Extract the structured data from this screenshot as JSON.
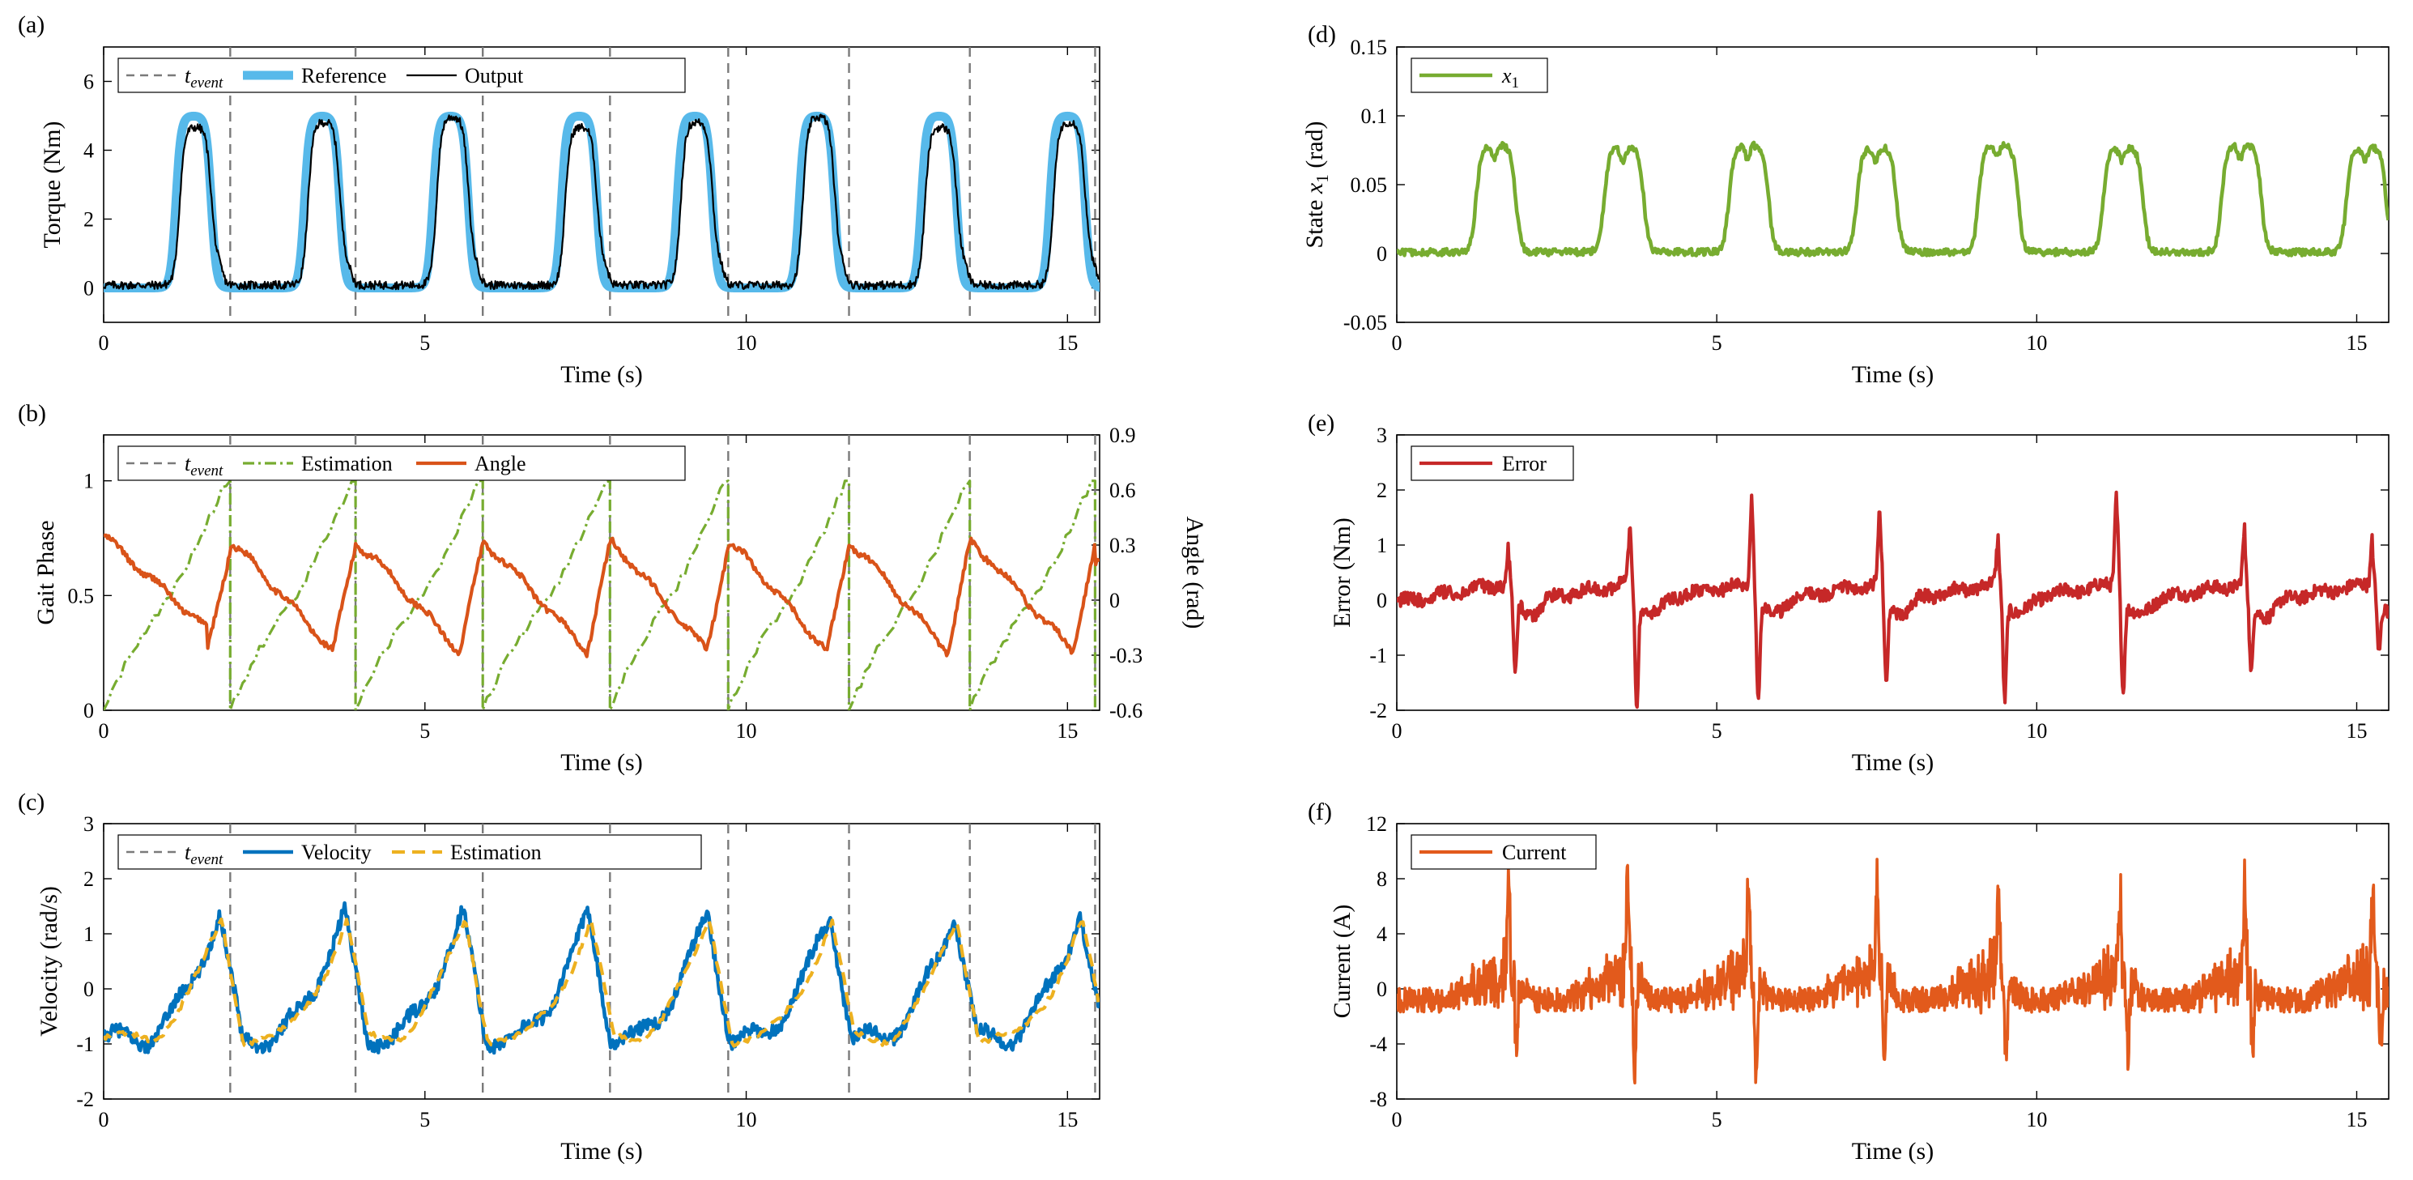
{
  "colors": {
    "event": "#7a7a7a",
    "reference": "#57b9ea",
    "output": "#000000",
    "phase": "#77ac30",
    "angle": "#d95319",
    "velocity": "#0072bd",
    "vel_estimation": "#edb120",
    "x1": "#77ac30",
    "error": "#c62828",
    "current": "#e25a1c"
  },
  "chart_data": [
    {
      "panel": "(a)",
      "type": "line",
      "xlabel": "Time (s)",
      "ylabel": "Torque (Nm)",
      "xlim": [
        0,
        15.5
      ],
      "ylim": [
        -1,
        7
      ],
      "xticks": [
        "0",
        "5",
        "10",
        "15"
      ],
      "yticks": [
        "0",
        "2",
        "4",
        "6"
      ],
      "grid": false,
      "legend": {
        "placement": "top-left",
        "entries": [
          "t_event",
          "Reference",
          "Output"
        ]
      },
      "event_times": [
        1.97,
        3.92,
        5.9,
        7.88,
        9.72,
        11.6,
        13.48,
        15.43
      ],
      "peak_times": [
        1.4,
        3.4,
        5.4,
        7.4,
        9.2,
        11.1,
        13.0,
        15.0
      ],
      "series": [
        {
          "name": "Reference",
          "style": "thick",
          "description_values": {
            "baseline": 0,
            "peak": 5.0,
            "plateau_width_s": 0.45
          }
        },
        {
          "name": "Output",
          "style": "thin",
          "description_values": {
            "baseline": 0.1,
            "peak": 4.8
          }
        }
      ]
    },
    {
      "panel": "(b)",
      "type": "line",
      "xlabel": "Time (s)",
      "ylabel": "Gait Phase",
      "ylabel_right": "Angle (rad)",
      "xlim": [
        0,
        15.5
      ],
      "ylim": [
        0,
        1.2
      ],
      "ylim_right": [
        -0.6,
        0.9
      ],
      "xticks": [
        "0",
        "5",
        "10",
        "15"
      ],
      "yticks": [
        "0",
        "0.5",
        "1"
      ],
      "yticks_right": [
        "-0.6",
        "-0.3",
        "0",
        "0.3",
        "0.6",
        "0.9"
      ],
      "legend": {
        "placement": "top-left",
        "entries": [
          "t_event",
          "Estimation",
          "Angle"
        ]
      },
      "series": [
        {
          "name": "Estimation",
          "style": "dash-dot",
          "description_values": {
            "ramp_from": 0,
            "ramp_to": 1.0
          }
        },
        {
          "name": "Angle",
          "style": "solid",
          "axis": "right",
          "description_values": {
            "max": 0.3,
            "min": -0.3
          }
        }
      ]
    },
    {
      "panel": "(c)",
      "type": "line",
      "xlabel": "Time (s)",
      "ylabel": "Velocity (rad/s)",
      "xlim": [
        0,
        15.5
      ],
      "ylim": [
        -2,
        3
      ],
      "xticks": [
        "0",
        "5",
        "10",
        "15"
      ],
      "yticks": [
        "-2",
        "-1",
        "0",
        "1",
        "2",
        "3"
      ],
      "legend": {
        "placement": "top-left",
        "entries": [
          "t_event",
          "Velocity",
          "Estimation"
        ]
      },
      "series": [
        {
          "name": "Velocity",
          "style": "solid",
          "description_values": {
            "peak": 1.45,
            "trough": -1.3
          }
        },
        {
          "name": "Estimation",
          "style": "dashed",
          "description_values": {
            "peak": 1.35,
            "trough": -1.1
          }
        }
      ]
    },
    {
      "panel": "(d)",
      "type": "line",
      "xlabel": "Time (s)",
      "ylabel": "State x1 (rad)",
      "xlim": [
        0,
        15.5
      ],
      "ylim": [
        -0.05,
        0.15
      ],
      "xticks": [
        "0",
        "5",
        "10",
        "15"
      ],
      "yticks": [
        "-0.05",
        "0",
        "0.05",
        "0.1",
        "0.15"
      ],
      "legend": {
        "placement": "top-left",
        "entries": [
          "x1"
        ]
      },
      "series": [
        {
          "name": "x1",
          "style": "solid",
          "description_values": {
            "baseline": 0.002,
            "peak": 0.082
          }
        }
      ]
    },
    {
      "panel": "(e)",
      "type": "line",
      "xlabel": "Time (s)",
      "ylabel": "Error (Nm)",
      "xlim": [
        0,
        15.5
      ],
      "ylim": [
        -2,
        3
      ],
      "xticks": [
        "0",
        "5",
        "10",
        "15"
      ],
      "yticks": [
        "-2",
        "-1",
        "0",
        "1",
        "2",
        "3"
      ],
      "legend": {
        "placement": "top-left",
        "entries": [
          "Error"
        ]
      },
      "spike_times": [
        1.75,
        3.65,
        5.55,
        7.55,
        9.4,
        11.25,
        13.25,
        15.25
      ],
      "spike_highs": [
        0.75,
        1.05,
        1.65,
        1.35,
        0.85,
        1.7,
        0.95,
        0.9
      ],
      "spike_lows": [
        -1.3,
        -1.75,
        -1.7,
        -1.5,
        -1.7,
        -1.55,
        -1.3,
        -0.8
      ],
      "series": [
        {
          "name": "Error",
          "style": "solid"
        }
      ]
    },
    {
      "panel": "(f)",
      "type": "line",
      "xlabel": "Time (s)",
      "ylabel": "Current (A)",
      "xlim": [
        0,
        15.5
      ],
      "ylim": [
        -8,
        12
      ],
      "xticks": [
        "0",
        "5",
        "10",
        "15"
      ],
      "yticks": [
        "-8",
        "-4",
        "0",
        "4",
        "8",
        "12"
      ],
      "legend": {
        "placement": "top-left",
        "entries": [
          "Current"
        ]
      },
      "series": [
        {
          "name": "Current",
          "style": "solid",
          "description_values": {
            "peak": 6.5,
            "trough": -6.2
          }
        }
      ]
    }
  ],
  "panels": {
    "a": {
      "label": "(a)",
      "xlabel": "Time (s)",
      "ylabel": "Torque (Nm)",
      "leg1_sub": "event",
      "leg2": "Reference",
      "leg3": "Output"
    },
    "b": {
      "label": "(b)",
      "xlabel": "Time (s)",
      "ylabel": "Gait Phase",
      "ylabel_right": "Angle (rad)",
      "leg1_sub": "event",
      "leg2": "Estimation",
      "leg3": "Angle"
    },
    "c": {
      "label": "(c)",
      "xlabel": "Time (s)",
      "ylabel": "Velocity (rad/s)",
      "leg1_sub": "event",
      "leg2": "Velocity",
      "leg3": "Estimation"
    },
    "d": {
      "label": "(d)",
      "xlabel": "Time (s)",
      "ylabel_pre": "State ",
      "ylabel_var": "x",
      "ylabel_sub": "1",
      "ylabel_post": " (rad)",
      "leg_var": "x",
      "leg_sub": "1"
    },
    "e": {
      "label": "(e)",
      "xlabel": "Time (s)",
      "ylabel": "Error (Nm)",
      "leg": "Error"
    },
    "f": {
      "label": "(f)",
      "xlabel": "Time (s)",
      "ylabel": "Current (A)",
      "leg": "Current"
    }
  }
}
